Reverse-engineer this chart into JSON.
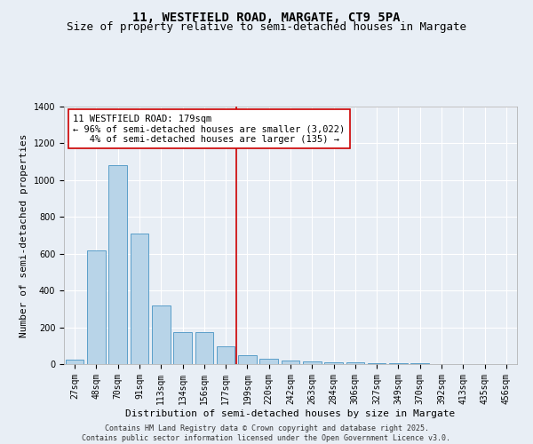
{
  "title_line1": "11, WESTFIELD ROAD, MARGATE, CT9 5PA",
  "title_line2": "Size of property relative to semi-detached houses in Margate",
  "xlabel": "Distribution of semi-detached houses by size in Margate",
  "ylabel": "Number of semi-detached properties",
  "categories": [
    "27sqm",
    "48sqm",
    "70sqm",
    "91sqm",
    "113sqm",
    "134sqm",
    "156sqm",
    "177sqm",
    "199sqm",
    "220sqm",
    "242sqm",
    "263sqm",
    "284sqm",
    "306sqm",
    "327sqm",
    "349sqm",
    "370sqm",
    "392sqm",
    "413sqm",
    "435sqm",
    "456sqm"
  ],
  "values": [
    25,
    620,
    1080,
    710,
    320,
    175,
    175,
    95,
    50,
    30,
    20,
    15,
    10,
    8,
    5,
    3,
    3,
    2,
    2,
    2,
    2
  ],
  "bar_color": "#b8d4e8",
  "bar_edge_color": "#5a9ec9",
  "vline_color": "#cc0000",
  "vline_x_index": 7,
  "annotation_line1": "11 WESTFIELD ROAD: 179sqm",
  "annotation_line2": "← 96% of semi-detached houses are smaller (3,022)",
  "annotation_line3": "   4% of semi-detached houses are larger (135) →",
  "annotation_box_color": "#ffffff",
  "annotation_box_edge": "#cc0000",
  "background_color": "#e8eef5",
  "grid_color": "#ffffff",
  "ylim": [
    0,
    1400
  ],
  "yticks": [
    0,
    200,
    400,
    600,
    800,
    1000,
    1200,
    1400
  ],
  "footer_text": "Contains HM Land Registry data © Crown copyright and database right 2025.\nContains public sector information licensed under the Open Government Licence v3.0.",
  "title_fontsize": 10,
  "subtitle_fontsize": 9,
  "annotation_fontsize": 7.5,
  "ylabel_fontsize": 8,
  "xlabel_fontsize": 8,
  "tick_fontsize": 7,
  "footer_fontsize": 6
}
